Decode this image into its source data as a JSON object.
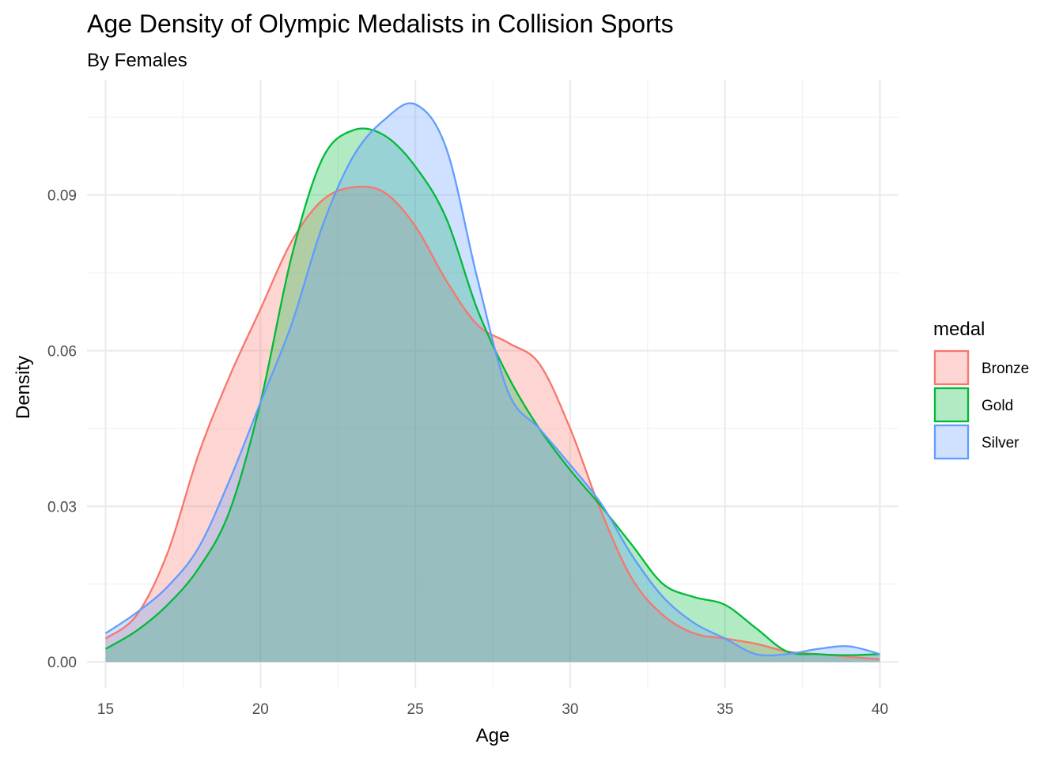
{
  "chart_data": {
    "type": "area",
    "title": "Age Density of Olympic Medalists in Collision Sports",
    "subtitle": "By Females",
    "xlabel": "Age",
    "ylabel": "Density",
    "xlim": [
      14.4,
      40.6
    ],
    "ylim": [
      -0.005,
      0.1122
    ],
    "x_ticks": [
      15,
      20,
      25,
      30,
      35,
      40
    ],
    "y_ticks": [
      0.0,
      0.03,
      0.06,
      0.09
    ],
    "x_tick_labels": [
      "15",
      "20",
      "25",
      "30",
      "35",
      "40"
    ],
    "y_tick_labels": [
      "0.00",
      "0.03",
      "0.06",
      "0.09"
    ],
    "grid": true,
    "legend": {
      "title": "medal",
      "position": "right"
    },
    "x": [
      15,
      16,
      17,
      18,
      19,
      20,
      21,
      22,
      23,
      24,
      25,
      26,
      27,
      28,
      29,
      30,
      31,
      32,
      33,
      34,
      35,
      36,
      37,
      38,
      39,
      40
    ],
    "series": [
      {
        "name": "Bronze",
        "color": "#F8766D",
        "values": [
          0.0045,
          0.009,
          0.021,
          0.04,
          0.055,
          0.068,
          0.081,
          0.089,
          0.0915,
          0.0905,
          0.084,
          0.0735,
          0.065,
          0.0615,
          0.0575,
          0.045,
          0.029,
          0.016,
          0.009,
          0.0055,
          0.0045,
          0.0035,
          0.002,
          0.0015,
          0.001,
          0.0005
        ]
      },
      {
        "name": "Gold",
        "color": "#00BA38",
        "values": [
          0.0025,
          0.006,
          0.011,
          0.018,
          0.029,
          0.05,
          0.078,
          0.097,
          0.1025,
          0.1015,
          0.0955,
          0.0855,
          0.068,
          0.055,
          0.045,
          0.037,
          0.03,
          0.0225,
          0.015,
          0.0125,
          0.011,
          0.0065,
          0.002,
          0.0015,
          0.0013,
          0.0015
        ]
      },
      {
        "name": "Silver",
        "color": "#619CFF",
        "values": [
          0.0055,
          0.0095,
          0.0145,
          0.022,
          0.035,
          0.05,
          0.065,
          0.084,
          0.0975,
          0.1045,
          0.1075,
          0.099,
          0.074,
          0.052,
          0.045,
          0.038,
          0.0305,
          0.0205,
          0.0125,
          0.0075,
          0.0045,
          0.0015,
          0.0015,
          0.0025,
          0.003,
          0.0015
        ]
      }
    ]
  }
}
